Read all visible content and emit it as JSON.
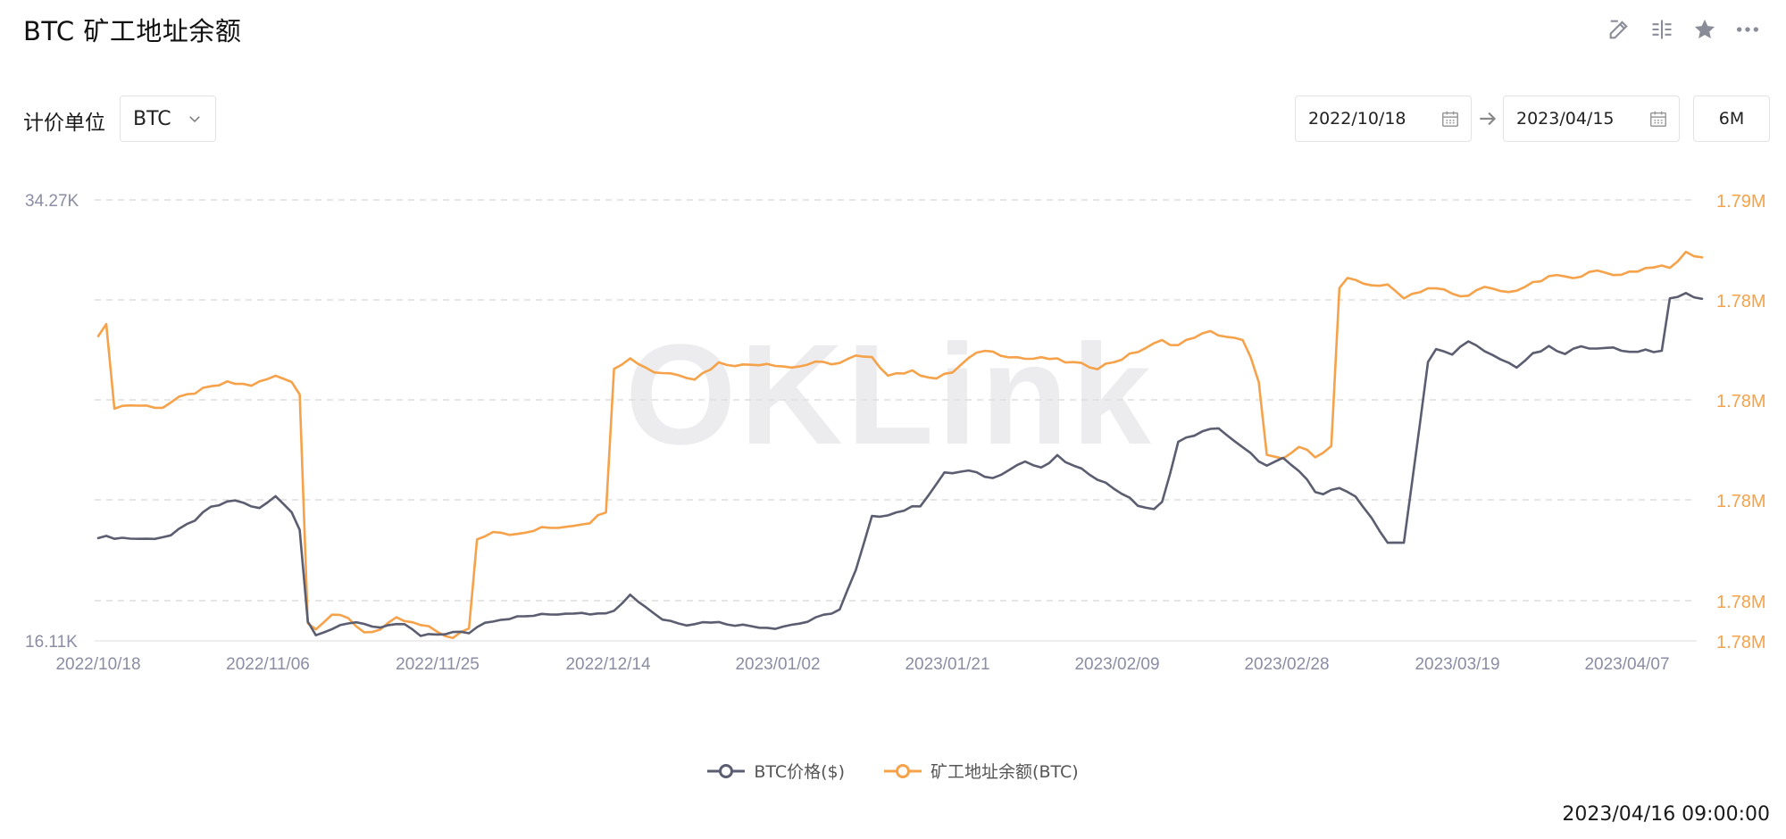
{
  "title": "BTC 矿工地址余额",
  "toolbar": {
    "icons": [
      "edit-icon",
      "compare-icon",
      "star-icon",
      "more-icon"
    ]
  },
  "unit": {
    "label": "计价单位",
    "selected": "BTC"
  },
  "date_range": {
    "start": "2022/10/18",
    "end": "2023/04/15",
    "range_button": "6M"
  },
  "watermark": "OKLink",
  "timestamp": "2023/04/16 09:00:00",
  "colors": {
    "price": "#5b5d70",
    "balance": "#f5a24b",
    "grid": "#dedede",
    "axis_text_left": "#8a8da3",
    "axis_text_right": "#f5a24b"
  },
  "chart_data": {
    "type": "line",
    "x_tick_labels": [
      "2022/10/18",
      "2022/11/06",
      "2022/11/25",
      "2022/12/14",
      "2023/01/02",
      "2023/01/21",
      "2023/02/09",
      "2023/02/28",
      "2023/03/19",
      "2023/04/07"
    ],
    "y_left": {
      "tick_labels": [
        "34.27K",
        "16.11K"
      ],
      "range": [
        16110,
        34270
      ]
    },
    "y_right": {
      "tick_labels": [
        "1.79M",
        "1.78M",
        "1.78M",
        "1.78M",
        "1.78M",
        "1.78M"
      ]
    },
    "grid": true,
    "legend_position": "bottom",
    "series": [
      {
        "name": "BTC价格($)",
        "axis": "left",
        "keypoints": [
          [
            0,
            20400
          ],
          [
            3,
            20350
          ],
          [
            6,
            20300
          ],
          [
            9,
            20450
          ],
          [
            12,
            21100
          ],
          [
            14,
            21600
          ],
          [
            17,
            21900
          ],
          [
            20,
            21550
          ],
          [
            22,
            22050
          ],
          [
            24,
            21450
          ],
          [
            25,
            20700
          ],
          [
            26,
            16900
          ],
          [
            27,
            16400
          ],
          [
            29,
            16600
          ],
          [
            32,
            16900
          ],
          [
            35,
            16650
          ],
          [
            38,
            16800
          ],
          [
            40,
            16300
          ],
          [
            44,
            16450
          ],
          [
            46,
            16450
          ],
          [
            48,
            16900
          ],
          [
            51,
            17050
          ],
          [
            54,
            17150
          ],
          [
            56,
            17200
          ],
          [
            60,
            17300
          ],
          [
            62,
            17200
          ],
          [
            64,
            17400
          ],
          [
            66,
            18000
          ],
          [
            68,
            17500
          ],
          [
            70,
            17000
          ],
          [
            73,
            16800
          ],
          [
            76,
            16900
          ],
          [
            80,
            16750
          ],
          [
            84,
            16650
          ],
          [
            88,
            16900
          ],
          [
            92,
            17400
          ],
          [
            94,
            19000
          ],
          [
            96,
            21200
          ],
          [
            99,
            21400
          ],
          [
            102,
            21700
          ],
          [
            105,
            23000
          ],
          [
            108,
            23100
          ],
          [
            111,
            22800
          ],
          [
            113,
            23200
          ],
          [
            115,
            23500
          ],
          [
            117,
            23200
          ],
          [
            119,
            23700
          ],
          [
            121,
            23300
          ],
          [
            123,
            23000
          ],
          [
            125,
            22600
          ],
          [
            127,
            22200
          ],
          [
            129,
            21700
          ],
          [
            131,
            21500
          ],
          [
            132,
            21800
          ],
          [
            134,
            24300
          ],
          [
            136,
            24600
          ],
          [
            139,
            24900
          ],
          [
            141,
            24300
          ],
          [
            143,
            23800
          ],
          [
            145,
            23300
          ],
          [
            147,
            23600
          ],
          [
            149,
            23100
          ],
          [
            151,
            22300
          ],
          [
            152,
            22200
          ],
          [
            154,
            22400
          ],
          [
            156,
            22000
          ],
          [
            158,
            21200
          ],
          [
            160,
            20100
          ],
          [
            162,
            20200
          ],
          [
            163,
            22600
          ],
          [
            165,
            27600
          ],
          [
            166,
            28100
          ],
          [
            168,
            27900
          ],
          [
            170,
            28500
          ],
          [
            172,
            28000
          ],
          [
            174,
            27700
          ],
          [
            176,
            27400
          ],
          [
            178,
            27900
          ],
          [
            180,
            28200
          ],
          [
            182,
            27900
          ],
          [
            184,
            28300
          ],
          [
            186,
            28100
          ],
          [
            188,
            28200
          ],
          [
            190,
            28000
          ],
          [
            192,
            28100
          ],
          [
            194,
            28000
          ],
          [
            195,
            30200
          ],
          [
            197,
            30400
          ],
          [
            199,
            30200
          ]
        ]
      },
      {
        "name": "矿工地址余额(BTC)",
        "axis": "right",
        "keypoints": [
          [
            0,
            0.695
          ],
          [
            1,
            0.715
          ],
          [
            2,
            0.53
          ],
          [
            4,
            0.535
          ],
          [
            8,
            0.53
          ],
          [
            10,
            0.55
          ],
          [
            13,
            0.57
          ],
          [
            16,
            0.585
          ],
          [
            19,
            0.58
          ],
          [
            22,
            0.6
          ],
          [
            24,
            0.59
          ],
          [
            25,
            0.56
          ],
          [
            26,
            0.04
          ],
          [
            27,
            0.03
          ],
          [
            29,
            0.06
          ],
          [
            31,
            0.05
          ],
          [
            33,
            0.02
          ],
          [
            35,
            0.025
          ],
          [
            37,
            0.05
          ],
          [
            39,
            0.04
          ],
          [
            41,
            0.03
          ],
          [
            44,
            0.005
          ],
          [
            46,
            0.03
          ],
          [
            47,
            0.23
          ],
          [
            49,
            0.25
          ],
          [
            52,
            0.24
          ],
          [
            55,
            0.255
          ],
          [
            58,
            0.26
          ],
          [
            61,
            0.27
          ],
          [
            63,
            0.295
          ],
          [
            64,
            0.62
          ],
          [
            66,
            0.64
          ],
          [
            69,
            0.61
          ],
          [
            72,
            0.605
          ],
          [
            74,
            0.595
          ],
          [
            77,
            0.63
          ],
          [
            80,
            0.625
          ],
          [
            83,
            0.63
          ],
          [
            86,
            0.62
          ],
          [
            89,
            0.63
          ],
          [
            92,
            0.63
          ],
          [
            94,
            0.645
          ],
          [
            96,
            0.64
          ],
          [
            98,
            0.605
          ],
          [
            101,
            0.61
          ],
          [
            104,
            0.595
          ],
          [
            106,
            0.61
          ],
          [
            108,
            0.64
          ],
          [
            110,
            0.66
          ],
          [
            112,
            0.65
          ],
          [
            115,
            0.64
          ],
          [
            118,
            0.64
          ],
          [
            121,
            0.63
          ],
          [
            124,
            0.62
          ],
          [
            127,
            0.64
          ],
          [
            130,
            0.665
          ],
          [
            132,
            0.68
          ],
          [
            134,
            0.67
          ],
          [
            136,
            0.69
          ],
          [
            138,
            0.7
          ],
          [
            140,
            0.69
          ],
          [
            142,
            0.68
          ],
          [
            143,
            0.64
          ],
          [
            144,
            0.59
          ],
          [
            145,
            0.42
          ],
          [
            147,
            0.41
          ],
          [
            149,
            0.44
          ],
          [
            151,
            0.42
          ],
          [
            153,
            0.44
          ],
          [
            154,
            0.8
          ],
          [
            155,
            0.82
          ],
          [
            157,
            0.81
          ],
          [
            160,
            0.805
          ],
          [
            162,
            0.78
          ],
          [
            165,
            0.8
          ],
          [
            167,
            0.795
          ],
          [
            169,
            0.78
          ],
          [
            172,
            0.8
          ],
          [
            175,
            0.79
          ],
          [
            178,
            0.81
          ],
          [
            181,
            0.83
          ],
          [
            183,
            0.82
          ],
          [
            185,
            0.84
          ],
          [
            188,
            0.83
          ],
          [
            191,
            0.84
          ],
          [
            193,
            0.85
          ],
          [
            195,
            0.845
          ],
          [
            197,
            0.88
          ],
          [
            199,
            0.87
          ]
        ]
      }
    ]
  }
}
